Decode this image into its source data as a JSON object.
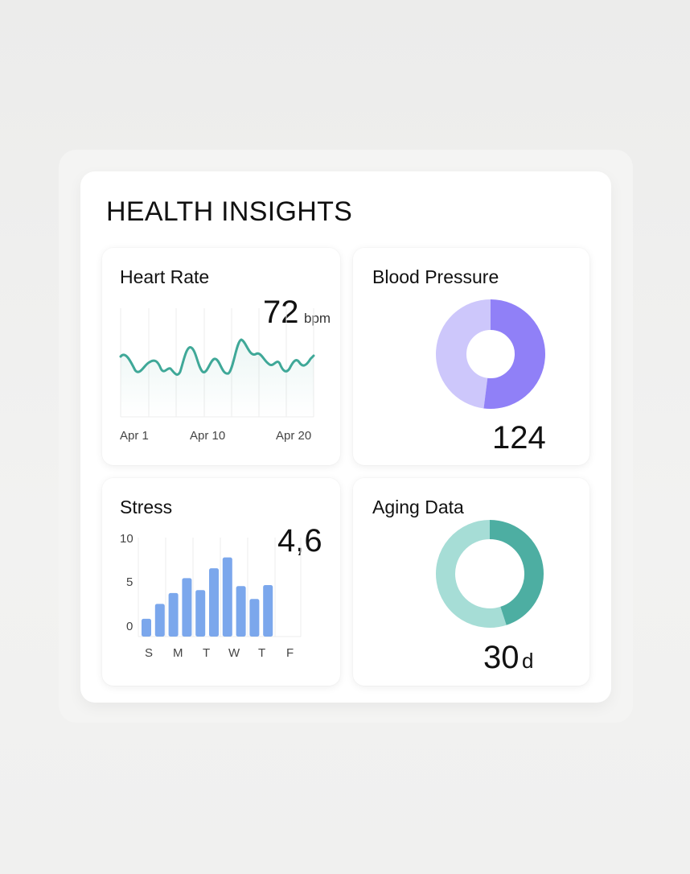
{
  "title": "HEALTH INSIGHTS",
  "colors": {
    "heart_line": "#3fa898",
    "bp_primary": "#9080f7",
    "bp_secondary": "#cdc7fb",
    "stress_bar": "#7ba7ec",
    "aging_primary": "#4daea2",
    "aging_secondary": "#a6ddd6"
  },
  "heart_rate": {
    "label": "Heart Rate",
    "value": "72",
    "unit": "bpm",
    "x_labels": [
      "Apr 1",
      "Apr 10",
      "Apr 20"
    ]
  },
  "blood_pressure": {
    "label": "Blood Pressure",
    "value": "124",
    "fraction_primary": 0.52
  },
  "stress": {
    "label": "Stress",
    "value": "4,6",
    "y_ticks": [
      "10",
      "5",
      "0"
    ],
    "y_max": 10,
    "day_labels": [
      "S",
      "M",
      "T",
      "W",
      "T",
      "F"
    ],
    "bars": [
      1.8,
      3.3,
      4.4,
      5.9,
      4.7,
      6.9,
      8.0,
      5.1,
      3.8,
      5.2
    ]
  },
  "aging": {
    "label": "Aging Data",
    "value": "30",
    "unit": "d",
    "fraction_primary": 0.45
  }
}
